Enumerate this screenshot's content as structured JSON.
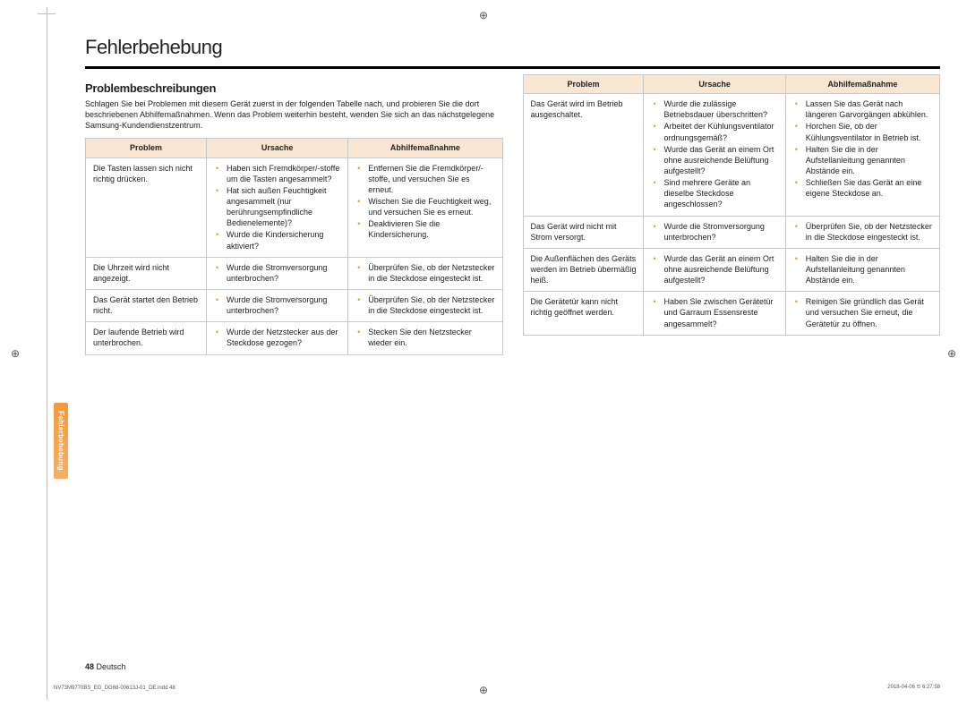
{
  "page": {
    "title": "Fehlerbehebung",
    "subtitle": "Problembeschreibungen",
    "intro": "Schlagen Sie bei Problemen mit diesem Gerät zuerst in der folgenden Tabelle nach, und probieren Sie die dort beschriebenen Abhilfemaßnahmen. Wenn das Problem weiterhin besteht, wenden Sie sich an das nächstgelegene Samsung-Kundendienstzentrum.",
    "side_tab": "Fehlerbehebung",
    "page_number": "48",
    "language_label": "Deutsch",
    "footer_file": "NV73M9770BS_EG_DG68-00613J-01_DE.indd   48",
    "footer_timestamp": "2018-04-06   ⏲ 6:27:58"
  },
  "headers": {
    "p": "Problem",
    "c": "Ursache",
    "a": "Abhilfemaßnahme"
  },
  "left_rows": [
    {
      "problem": "Die Tasten lassen sich nicht richtig drücken.",
      "causes": [
        "Haben sich Fremdkörper/-stoffe um die Tasten angesammelt?",
        "Hat sich außen Feuchtigkeit angesammelt (nur berührungsempfindliche Bedienelemente)?",
        "Wurde die Kindersicherung aktiviert?"
      ],
      "actions": [
        "Entfernen Sie die Fremdkörper/-stoffe, und versuchen Sie es erneut.",
        "Wischen Sie die Feuchtigkeit weg, und versuchen Sie es erneut.",
        "Deaktivieren Sie die Kindersicherung."
      ]
    },
    {
      "problem": "Die Uhrzeit wird nicht angezeigt.",
      "causes": [
        "Wurde die Stromversorgung unterbrochen?"
      ],
      "actions": [
        "Überprüfen Sie, ob der Netzstecker in die Steckdose eingesteckt ist."
      ]
    },
    {
      "problem": "Das Gerät startet den Betrieb nicht.",
      "causes": [
        "Wurde die Stromversorgung unterbrochen?"
      ],
      "actions": [
        "Überprüfen Sie, ob der Netzstecker in die Steckdose eingesteckt ist."
      ]
    },
    {
      "problem": "Der laufende Betrieb wird unterbrochen.",
      "causes": [
        "Wurde der Netzstecker aus der Steckdose gezogen?"
      ],
      "actions": [
        "Stecken Sie den Netzstecker wieder ein."
      ]
    }
  ],
  "right_rows": [
    {
      "problem": "Das Gerät wird im Betrieb ausgeschaltet.",
      "causes": [
        "Wurde die zulässige Betriebsdauer überschritten?",
        "Arbeitet der Kühlungsventilator ordnungsgemäß?",
        "Wurde das Gerät an einem Ort ohne ausreichende Belüftung aufgestellt?",
        "Sind mehrere Geräte an dieselbe Steckdose angeschlossen?"
      ],
      "actions": [
        "Lassen Sie das Gerät nach längeren Garvorgängen abkühlen.",
        "Horchen Sie, ob der Kühlungsventilator in Betrieb ist.",
        "Halten Sie die in der Aufstellanleitung genannten Abstände ein.",
        "Schließen Sie das Gerät an eine eigene Steckdose an."
      ]
    },
    {
      "problem": "Das Gerät wird nicht mit Strom versorgt.",
      "causes": [
        "Wurde die Stromversorgung unterbrochen?"
      ],
      "actions": [
        "Überprüfen Sie, ob der Netzstecker in die Steckdose eingesteckt ist."
      ]
    },
    {
      "problem": "Die Außenflächen des Geräts werden im Betrieb übermäßig heiß.",
      "causes": [
        "Wurde das Gerät an einem Ort ohne ausreichende Belüftung aufgestellt?"
      ],
      "actions": [
        "Halten Sie die in der Aufstellanleitung genannten Abstände ein."
      ]
    },
    {
      "problem": "Die Gerätetür kann nicht richtig geöffnet werden.",
      "causes": [
        "Haben Sie zwischen Gerätetür und Garraum Essensreste angesammelt?"
      ],
      "actions": [
        "Reinigen Sie gründlich das Gerät und versuchen Sie erneut, die Gerätetür zu öffnen."
      ]
    }
  ],
  "colwidths": {
    "problem": "29%",
    "cause": "34%",
    "action": "37%"
  },
  "colors": {
    "header_bg": "#f8e6d2",
    "bullet": "#e4983c",
    "tab_top": "#f39a3b",
    "tab_bot": "#f5b069"
  }
}
